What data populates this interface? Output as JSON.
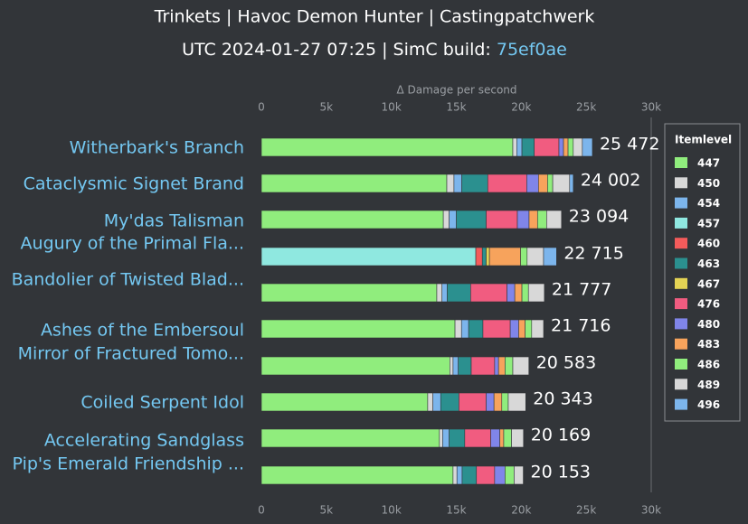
{
  "chart_data": {
    "type": "stacked-bar-horizontal",
    "title": "Trinkets | Havoc Demon Hunter | Castingpatchwerk",
    "subtitle": "UTC 2024-01-27 07:25 | SimC build: ",
    "subtitle_link": "75ef0ae",
    "x_label": "Δ Damage per second",
    "legend_title": "Itemlevel",
    "legend": "right",
    "grid": false,
    "xlim": [
      0,
      30000
    ],
    "xticks": [
      0,
      {
        "value": 5000,
        "label": "5k"
      },
      {
        "value": 10000,
        "label": "10k"
      },
      {
        "value": 15000,
        "label": "15k"
      },
      {
        "value": 20000,
        "label": "20k"
      },
      {
        "value": 25000,
        "label": "25k"
      },
      {
        "value": 30000,
        "label": "30k"
      }
    ],
    "categories": [
      "Witherbark's Branch",
      "Cataclysmic Signet Brand",
      "My'das Talisman",
      "Augury of the Primal Fla...",
      "Bandolier of Twisted Blad...",
      "Ashes of the Embersoul",
      "Mirror of Fractured Tomo...",
      "Coiled Serpent Idol",
      "Accelerating Sandglass",
      "Pip's Emerald Friendship ..."
    ],
    "totals": [
      25472,
      24002,
      23094,
      22715,
      21777,
      21716,
      20583,
      20343,
      20169,
      20153
    ],
    "value_labels": [
      "25 472",
      "24 002",
      "23 094",
      "22 715",
      "21 777",
      "21 716",
      "20 583",
      "20 343",
      "20 169",
      "20 153"
    ],
    "series": [
      {
        "name": "447",
        "color": "#90ed7d",
        "values": [
          19350,
          14270,
          14000,
          0,
          13500,
          14900,
          14500,
          12800,
          13700,
          14750
        ]
      },
      {
        "name": "450",
        "color": "#d8d8d8",
        "values": [
          300,
          550,
          450,
          0,
          400,
          500,
          250,
          400,
          250,
          300
        ]
      },
      {
        "name": "454",
        "color": "#7cb5ec",
        "values": [
          400,
          600,
          550,
          0,
          400,
          550,
          400,
          600,
          500,
          400
        ]
      },
      {
        "name": "457",
        "color": "#8fe8e0",
        "values": [
          0,
          0,
          0,
          16500,
          0,
          0,
          0,
          0,
          0,
          0
        ]
      },
      {
        "name": "460",
        "color": "#f45b5b",
        "values": [
          0,
          0,
          0,
          500,
          0,
          0,
          0,
          0,
          0,
          0
        ]
      },
      {
        "name": "463",
        "color": "#2b908f",
        "values": [
          950,
          2000,
          2300,
          300,
          1800,
          1100,
          1000,
          1400,
          1200,
          1100
        ]
      },
      {
        "name": "467",
        "color": "#e4d354",
        "values": [
          0,
          0,
          0,
          250,
          0,
          0,
          0,
          0,
          0,
          0
        ]
      },
      {
        "name": "476",
        "color": "#f15c80",
        "values": [
          1900,
          3000,
          2400,
          0,
          2800,
          2100,
          1800,
          2100,
          2000,
          1400
        ]
      },
      {
        "name": "480",
        "color": "#8085e9",
        "values": [
          350,
          900,
          900,
          0,
          600,
          650,
          300,
          600,
          700,
          800
        ]
      },
      {
        "name": "483",
        "color": "#f7a35c",
        "values": [
          350,
          700,
          650,
          2400,
          550,
          500,
          500,
          600,
          300,
          0
        ]
      },
      {
        "name": "486",
        "color": "#90ed7d",
        "values": [
          400,
          400,
          700,
          500,
          500,
          500,
          600,
          500,
          600,
          700
        ]
      },
      {
        "name": "489",
        "color": "#d8d8d8",
        "values": [
          700,
          1300,
          1144,
          1265,
          1227,
          916,
          1233,
          1343,
          919,
          703
        ]
      },
      {
        "name": "496",
        "color": "#7cb5ec",
        "values": [
          772,
          282,
          0,
          1000,
          0,
          0,
          0,
          0,
          0,
          0
        ]
      }
    ]
  }
}
